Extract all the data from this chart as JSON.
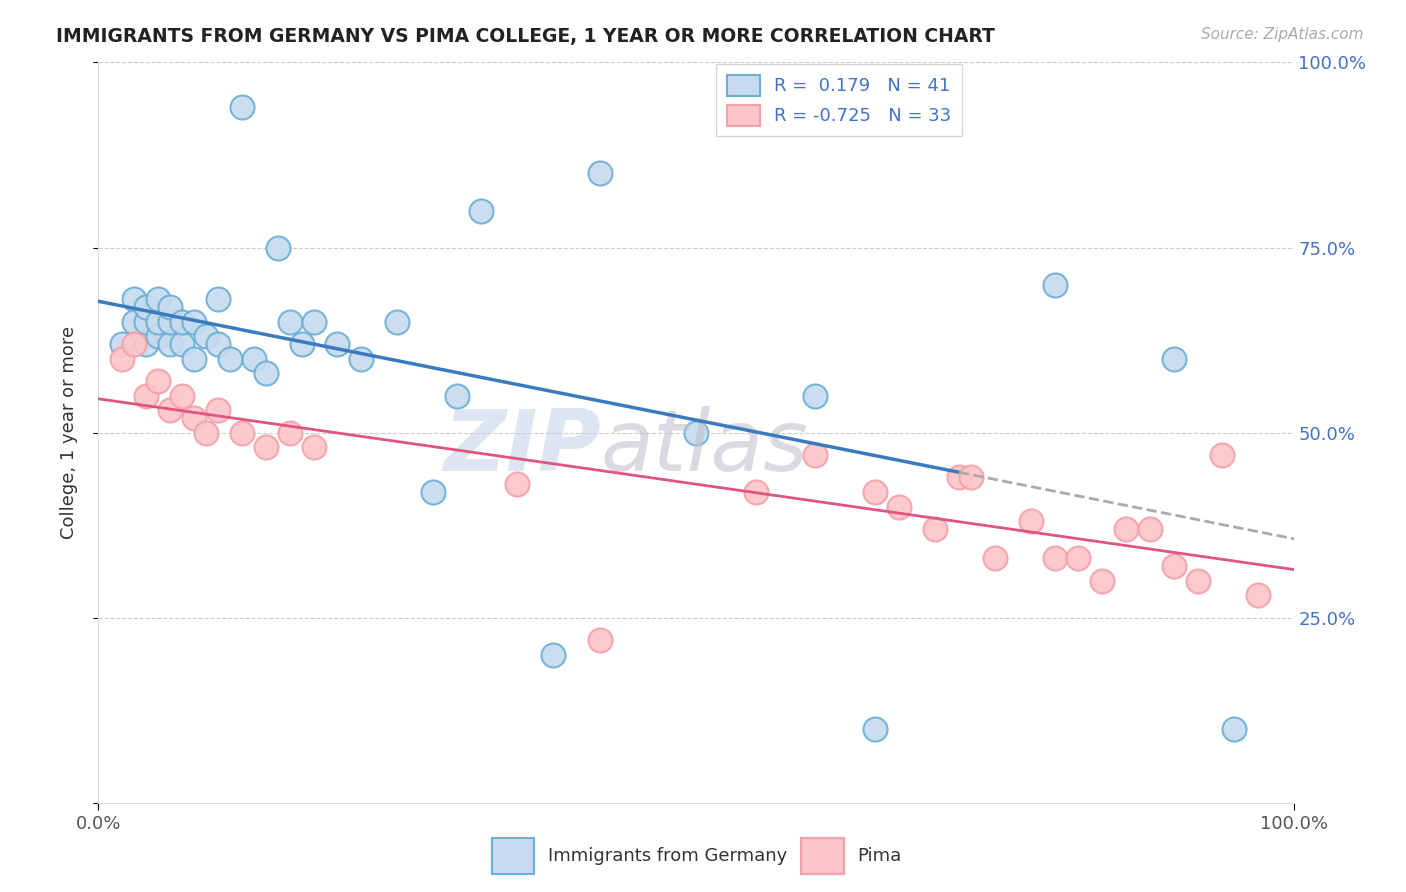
{
  "title": "IMMIGRANTS FROM GERMANY VS PIMA COLLEGE, 1 YEAR OR MORE CORRELATION CHART",
  "source": "Source: ZipAtlas.com",
  "legend_label_blue": "Immigrants from Germany",
  "legend_label_pink": "Pima",
  "ylabel": "College, 1 year or more",
  "xlim": [
    0.0,
    1.0
  ],
  "ylim": [
    0.0,
    1.0
  ],
  "legend_r_blue": "0.179",
  "legend_n_blue": "41",
  "legend_r_pink": "-0.725",
  "legend_n_pink": "33",
  "blue_scatter_color_face": "#c6dbef",
  "blue_scatter_color_edge": "#6baed6",
  "pink_scatter_color_face": "#fcc5c8",
  "pink_scatter_color_edge": "#f4a0a8",
  "blue_line_color": "#3a7abf",
  "pink_line_color": "#e05580",
  "dashed_line_color": "#aaaaaa",
  "watermark_zip_color": "#c5d5e8",
  "watermark_atlas_color": "#c5c0d0",
  "right_tick_color": "#4472c4",
  "blue_scatter_x": [
    0.02,
    0.03,
    0.03,
    0.04,
    0.04,
    0.04,
    0.05,
    0.05,
    0.05,
    0.06,
    0.06,
    0.06,
    0.07,
    0.07,
    0.08,
    0.08,
    0.09,
    0.1,
    0.1,
    0.11,
    0.12,
    0.13,
    0.14,
    0.15,
    0.16,
    0.17,
    0.18,
    0.2,
    0.22,
    0.25,
    0.28,
    0.3,
    0.32,
    0.38,
    0.42,
    0.5,
    0.6,
    0.65,
    0.8,
    0.9,
    0.95
  ],
  "blue_scatter_y": [
    0.62,
    0.68,
    0.65,
    0.62,
    0.65,
    0.67,
    0.63,
    0.65,
    0.68,
    0.62,
    0.65,
    0.67,
    0.62,
    0.65,
    0.6,
    0.65,
    0.63,
    0.62,
    0.68,
    0.6,
    0.94,
    0.6,
    0.58,
    0.75,
    0.65,
    0.62,
    0.65,
    0.62,
    0.6,
    0.65,
    0.42,
    0.55,
    0.8,
    0.2,
    0.85,
    0.5,
    0.55,
    0.1,
    0.7,
    0.6,
    0.1
  ],
  "pink_scatter_x": [
    0.02,
    0.03,
    0.04,
    0.05,
    0.06,
    0.07,
    0.08,
    0.09,
    0.1,
    0.12,
    0.14,
    0.16,
    0.18,
    0.35,
    0.42,
    0.55,
    0.6,
    0.65,
    0.67,
    0.7,
    0.72,
    0.73,
    0.75,
    0.78,
    0.8,
    0.82,
    0.84,
    0.86,
    0.88,
    0.9,
    0.92,
    0.94,
    0.97
  ],
  "pink_scatter_y": [
    0.6,
    0.62,
    0.55,
    0.57,
    0.53,
    0.55,
    0.52,
    0.5,
    0.53,
    0.5,
    0.48,
    0.5,
    0.48,
    0.43,
    0.22,
    0.42,
    0.47,
    0.42,
    0.4,
    0.37,
    0.44,
    0.44,
    0.33,
    0.38,
    0.33,
    0.33,
    0.3,
    0.37,
    0.37,
    0.32,
    0.3,
    0.47,
    0.28
  ]
}
